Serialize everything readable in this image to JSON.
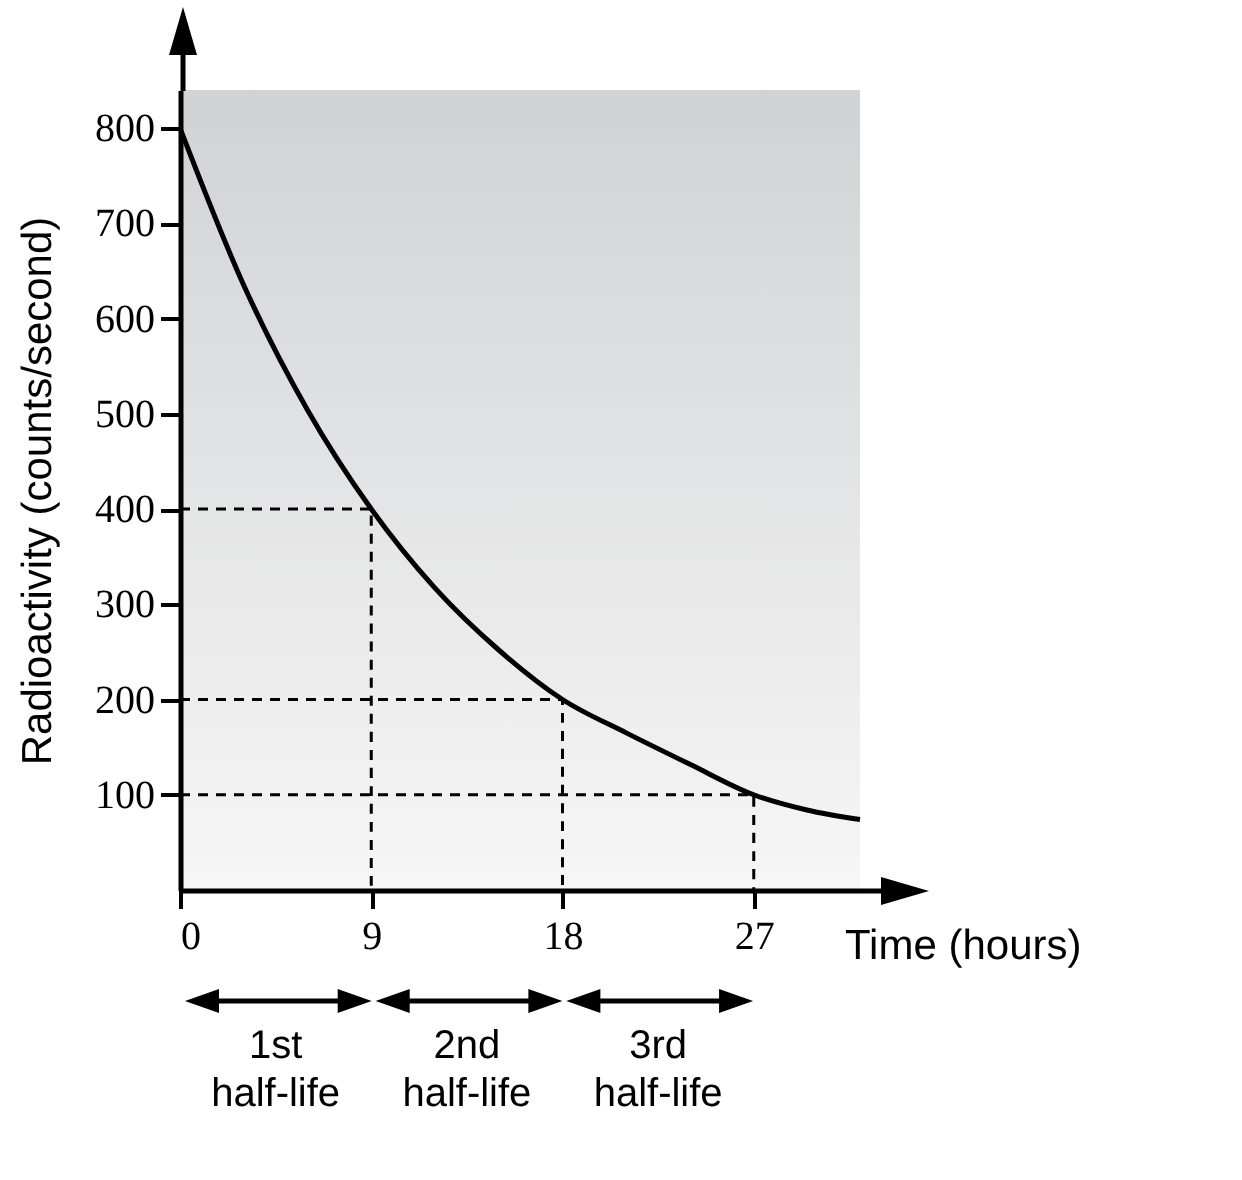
{
  "chart_data": {
    "type": "line",
    "xlabel": "Time (hours)",
    "ylabel": "Radioactivity (counts/second)",
    "xlim": [
      0,
      32
    ],
    "xticks": [
      0,
      9,
      18,
      27
    ],
    "ylim": [
      0,
      840
    ],
    "yticks": [
      100,
      200,
      300,
      400,
      500,
      600,
      700,
      800
    ],
    "series": [
      {
        "color": "#000000",
        "line_style": "solid",
        "x": [
          0,
          3,
          6,
          9,
          12,
          15,
          18,
          21,
          24,
          27,
          29.5,
          32
        ],
        "values": [
          800,
          635,
          504,
          400,
          317,
          252,
          200,
          165,
          132,
          100,
          84,
          74
        ]
      },
      {
        "color": "#000000",
        "line_style": "dashed",
        "x": [
          0,
          9,
          9
        ],
        "values": [
          400,
          400,
          0
        ]
      },
      {
        "color": "#000000",
        "line_style": "dashed",
        "x": [
          0,
          18,
          18
        ],
        "values": [
          200,
          200,
          0
        ]
      },
      {
        "color": "#000000",
        "line_style": "dashed",
        "x": [
          0,
          27,
          27
        ],
        "values": [
          100,
          100,
          0
        ]
      }
    ],
    "annotations": [
      "1st half-life",
      "2nd half-life",
      "3rd half-life"
    ]
  }
}
